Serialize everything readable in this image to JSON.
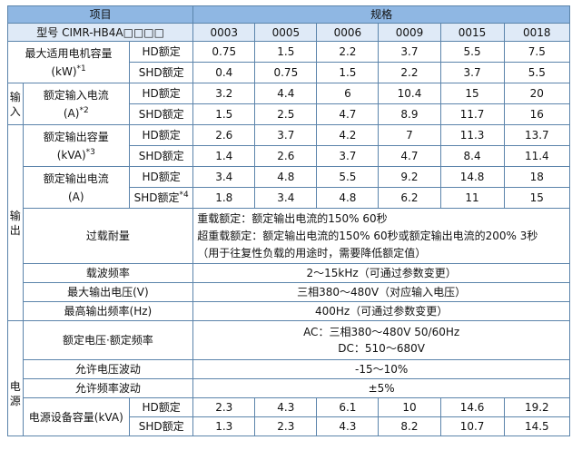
{
  "header": {
    "item": "项目",
    "spec": "规格"
  },
  "model_row": {
    "label": "型号 CIMR-HB4A□□□□",
    "codes": [
      "0003",
      "0005",
      "0006",
      "0009",
      "0015",
      "0018"
    ]
  },
  "labels": {
    "hd": "HD额定",
    "shd": "SHD额定",
    "section_input_1": "输",
    "section_input_2": "入",
    "section_output_1": "输",
    "section_output_2": "出",
    "section_power_1": "电",
    "section_power_2": "源"
  },
  "motor_capacity": {
    "label_line1": "最大适用电机容量",
    "label_line2": "(kW)",
    "note": "*1",
    "hd": [
      "0.75",
      "1.5",
      "2.2",
      "3.7",
      "5.5",
      "7.5"
    ],
    "shd": [
      "0.4",
      "0.75",
      "1.5",
      "2.2",
      "3.7",
      "5.5"
    ]
  },
  "rated_input_current": {
    "label_line1": "额定输入电流",
    "label_line2": "(A)",
    "note": "*2",
    "hd": [
      "3.2",
      "4.4",
      "6",
      "10.4",
      "15",
      "20"
    ],
    "shd": [
      "1.5",
      "2.5",
      "4.7",
      "8.9",
      "11.7",
      "16"
    ]
  },
  "rated_output_capacity": {
    "label_line1": "额定输出容量",
    "label_line2": "(kVA)",
    "note": "*3",
    "hd": [
      "2.6",
      "3.7",
      "4.2",
      "7",
      "11.3",
      "13.7"
    ],
    "shd": [
      "1.4",
      "2.6",
      "3.7",
      "4.7",
      "8.4",
      "11.4"
    ]
  },
  "rated_output_current": {
    "label_line1": "额定输出电流",
    "label_line2": "(A)",
    "shd_note": "*4",
    "hd": [
      "3.4",
      "4.8",
      "5.5",
      "9.2",
      "14.8",
      "18"
    ],
    "shd": [
      "1.8",
      "3.4",
      "4.8",
      "6.2",
      "11",
      "15"
    ]
  },
  "overload": {
    "label": "过载耐量",
    "line1": "重载额定：额定输出电流的150% 60秒",
    "line2": "超重载额定：额定输出电流的150% 60秒或额定输出电流的200% 3秒",
    "line3": "（用于往复性负载的用途时，需要降低额定值）"
  },
  "carrier_freq": {
    "label": "载波频率",
    "value": "2～15kHz（可通过参数变更）"
  },
  "max_output_voltage": {
    "label": "最大输出电压(V)",
    "value": "三相380～480V（对应输入电压）"
  },
  "max_output_freq": {
    "label": "最高输出频率(Hz)",
    "value": "400Hz（可通过参数变更）"
  },
  "rated_voltage_freq": {
    "label": "额定电压·额定频率",
    "ac": "AC：三相380～480V 50/60Hz",
    "dc": "DC：510～680V"
  },
  "voltage_fluctuation": {
    "label": "允许电压波动",
    "value": "-15～10%"
  },
  "freq_fluctuation": {
    "label": "允许频率波动",
    "value": "±5%"
  },
  "power_capacity": {
    "label": "电源设备容量(kVA)",
    "hd": [
      "2.3",
      "4.3",
      "6.1",
      "10",
      "14.6",
      "19.2"
    ],
    "shd": [
      "1.3",
      "2.3",
      "4.3",
      "8.2",
      "10.7",
      "14.5"
    ]
  }
}
